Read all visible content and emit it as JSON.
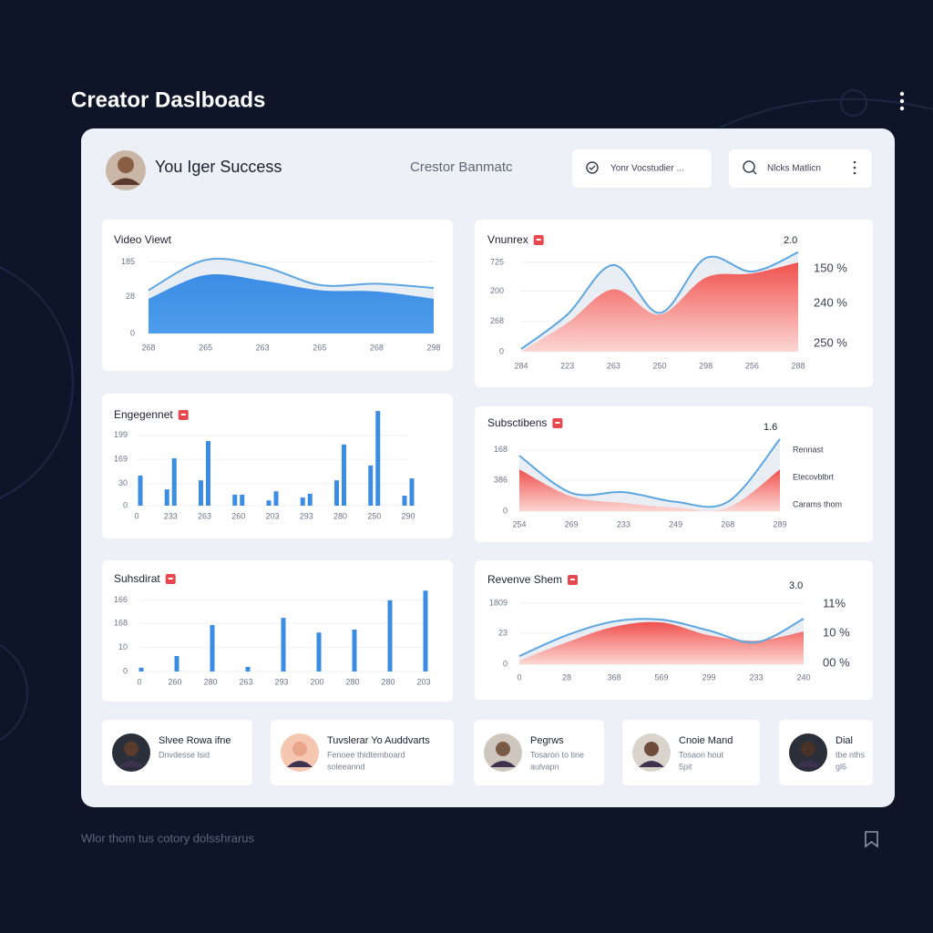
{
  "header": {
    "title": "Creator Daslboads"
  },
  "dashboard": {
    "user": "You Iger Success",
    "subtitle": "Crestor Banmatc",
    "filter": "Yonr Vocstudier ...",
    "search": "Nlcks Matlicn"
  },
  "chart_data": [
    {
      "type": "area",
      "title": "Video Viewt",
      "grid": true,
      "categories": [
        "268",
        "265",
        "263",
        "265",
        "268",
        "298"
      ],
      "ylim": [
        0,
        200
      ],
      "yticks": [
        0,
        {
          "value": 85,
          "label": "28"
        },
        {
          "value": 165,
          "label": "185"
        }
      ],
      "series": [
        {
          "kind": "line",
          "color": "#5ea6e0",
          "values": [
            100,
            170,
            155,
            112,
            115,
            105
          ]
        },
        {
          "kind": "area",
          "color": "#3b8de4",
          "values": [
            80,
            135,
            122,
            100,
            97,
            80
          ]
        }
      ]
    },
    {
      "type": "area",
      "title": "Vnunrex",
      "badge": true,
      "grid": true,
      "categories": [
        "284",
        "223",
        "263",
        "250",
        "298",
        "256",
        "288"
      ],
      "ylim": [
        0,
        300
      ],
      "yticks": [
        0,
        {
          "value": 90,
          "label": "268"
        },
        {
          "value": 180,
          "label": "200"
        },
        {
          "value": 265,
          "label": "725"
        }
      ],
      "side_labels": [
        "2.0",
        "150 %",
        "240 %",
        "250 %"
      ],
      "series": [
        {
          "kind": "line",
          "color": "#5ea6e0",
          "values": [
            8,
            110,
            257,
            115,
            278,
            238,
            295
          ]
        },
        {
          "kind": "area",
          "color": "#f0524f",
          "values": [
            0,
            85,
            185,
            110,
            220,
            232,
            265
          ]
        }
      ]
    },
    {
      "type": "bar",
      "title": "Engegennet",
      "badge": true,
      "grid": true,
      "categories": [
        "0",
        "233",
        "263",
        "260",
        "203",
        "293",
        "280",
        "250",
        "290"
      ],
      "ylim": [
        0,
        200
      ],
      "yticks": [
        0,
        {
          "value": 46,
          "label": "30"
        },
        {
          "value": 97,
          "label": "169"
        },
        {
          "value": 147,
          "label": "199"
        }
      ],
      "series": [
        {
          "color": "#3b8de4",
          "values": [
            null,
            34,
            53,
            23,
            11,
            17,
            53,
            84,
            21
          ]
        },
        {
          "color": "#3b8de4",
          "values": [
            63,
            99,
            135,
            23,
            30,
            25,
            128,
            198,
            57
          ]
        }
      ]
    },
    {
      "type": "area",
      "title": "Subsctibens",
      "badge": true,
      "grid": true,
      "categories": [
        "254",
        "269",
        "233",
        "249",
        "268",
        "289"
      ],
      "ylim": [
        0,
        200
      ],
      "yticks": [
        0,
        {
          "value": 80,
          "label": "386"
        },
        {
          "value": 158,
          "label": "168"
        }
      ],
      "side_labels": [
        "1.6",
        "Rennast",
        "Etecovblbrt",
        "Carams thom"
      ],
      "series": [
        {
          "kind": "line",
          "color": "#5ea6e0",
          "values": [
            143,
            47,
            49,
            24,
            24,
            186
          ]
        },
        {
          "kind": "area",
          "color": "#f0524f",
          "values": [
            108,
            38,
            21,
            9,
            9,
            108
          ]
        }
      ]
    },
    {
      "type": "bar",
      "title": "Suhsdirat",
      "badge": true,
      "grid": true,
      "categories": [
        "0",
        "260",
        "280",
        "263",
        "293",
        "200",
        "280",
        "280",
        "203"
      ],
      "ylim": [
        0,
        200
      ],
      "yticks": [
        0,
        {
          "value": 57,
          "label": "10"
        },
        {
          "value": 115,
          "label": "168"
        },
        {
          "value": 170,
          "label": "166"
        }
      ],
      "series": [
        {
          "color": "#3b8de4",
          "values": [
            9,
            37,
            111,
            11,
            128,
            93,
            100,
            170,
            193
          ]
        }
      ]
    },
    {
      "type": "area",
      "title": "Revenve Shem",
      "badge": true,
      "grid": true,
      "categories": [
        "0",
        "28",
        "368",
        "569",
        "299",
        "233",
        "240"
      ],
      "ylim": [
        0,
        200
      ],
      "yticks": [
        0,
        {
          "value": 92,
          "label": "23"
        },
        {
          "value": 181,
          "label": "1809"
        }
      ],
      "side_labels": [
        "3.0",
        "11%",
        "10 %",
        "00 %"
      ],
      "series": [
        {
          "kind": "line",
          "color": "#5ea6e0",
          "values": [
            24,
            86,
            127,
            132,
            100,
            65,
            135
          ]
        },
        {
          "kind": "area",
          "color": "#f0524f",
          "values": [
            11,
            65,
            111,
            124,
            86,
            70,
            97
          ]
        }
      ]
    }
  ],
  "profiles": [
    {
      "name": "Slvee Rowa ifne",
      "lines": [
        "Dnvdesse lsid"
      ]
    },
    {
      "name": "Tuvslerar Yo Auddvarts",
      "lines": [
        "Fenoee thidtemboard",
        "soleeannd"
      ]
    },
    {
      "name": "Pegrws",
      "lines": [
        "Tosaron to tine",
        "aulvapn"
      ]
    },
    {
      "name": "Cnoie Mand",
      "lines": [
        "Tosaon hout",
        "5pit"
      ]
    },
    {
      "name": "Dial",
      "lines": [
        "tbe nths",
        "gl6"
      ]
    }
  ],
  "footer": {
    "caption": "Wlor thom tus cotory dolsshrarus"
  }
}
